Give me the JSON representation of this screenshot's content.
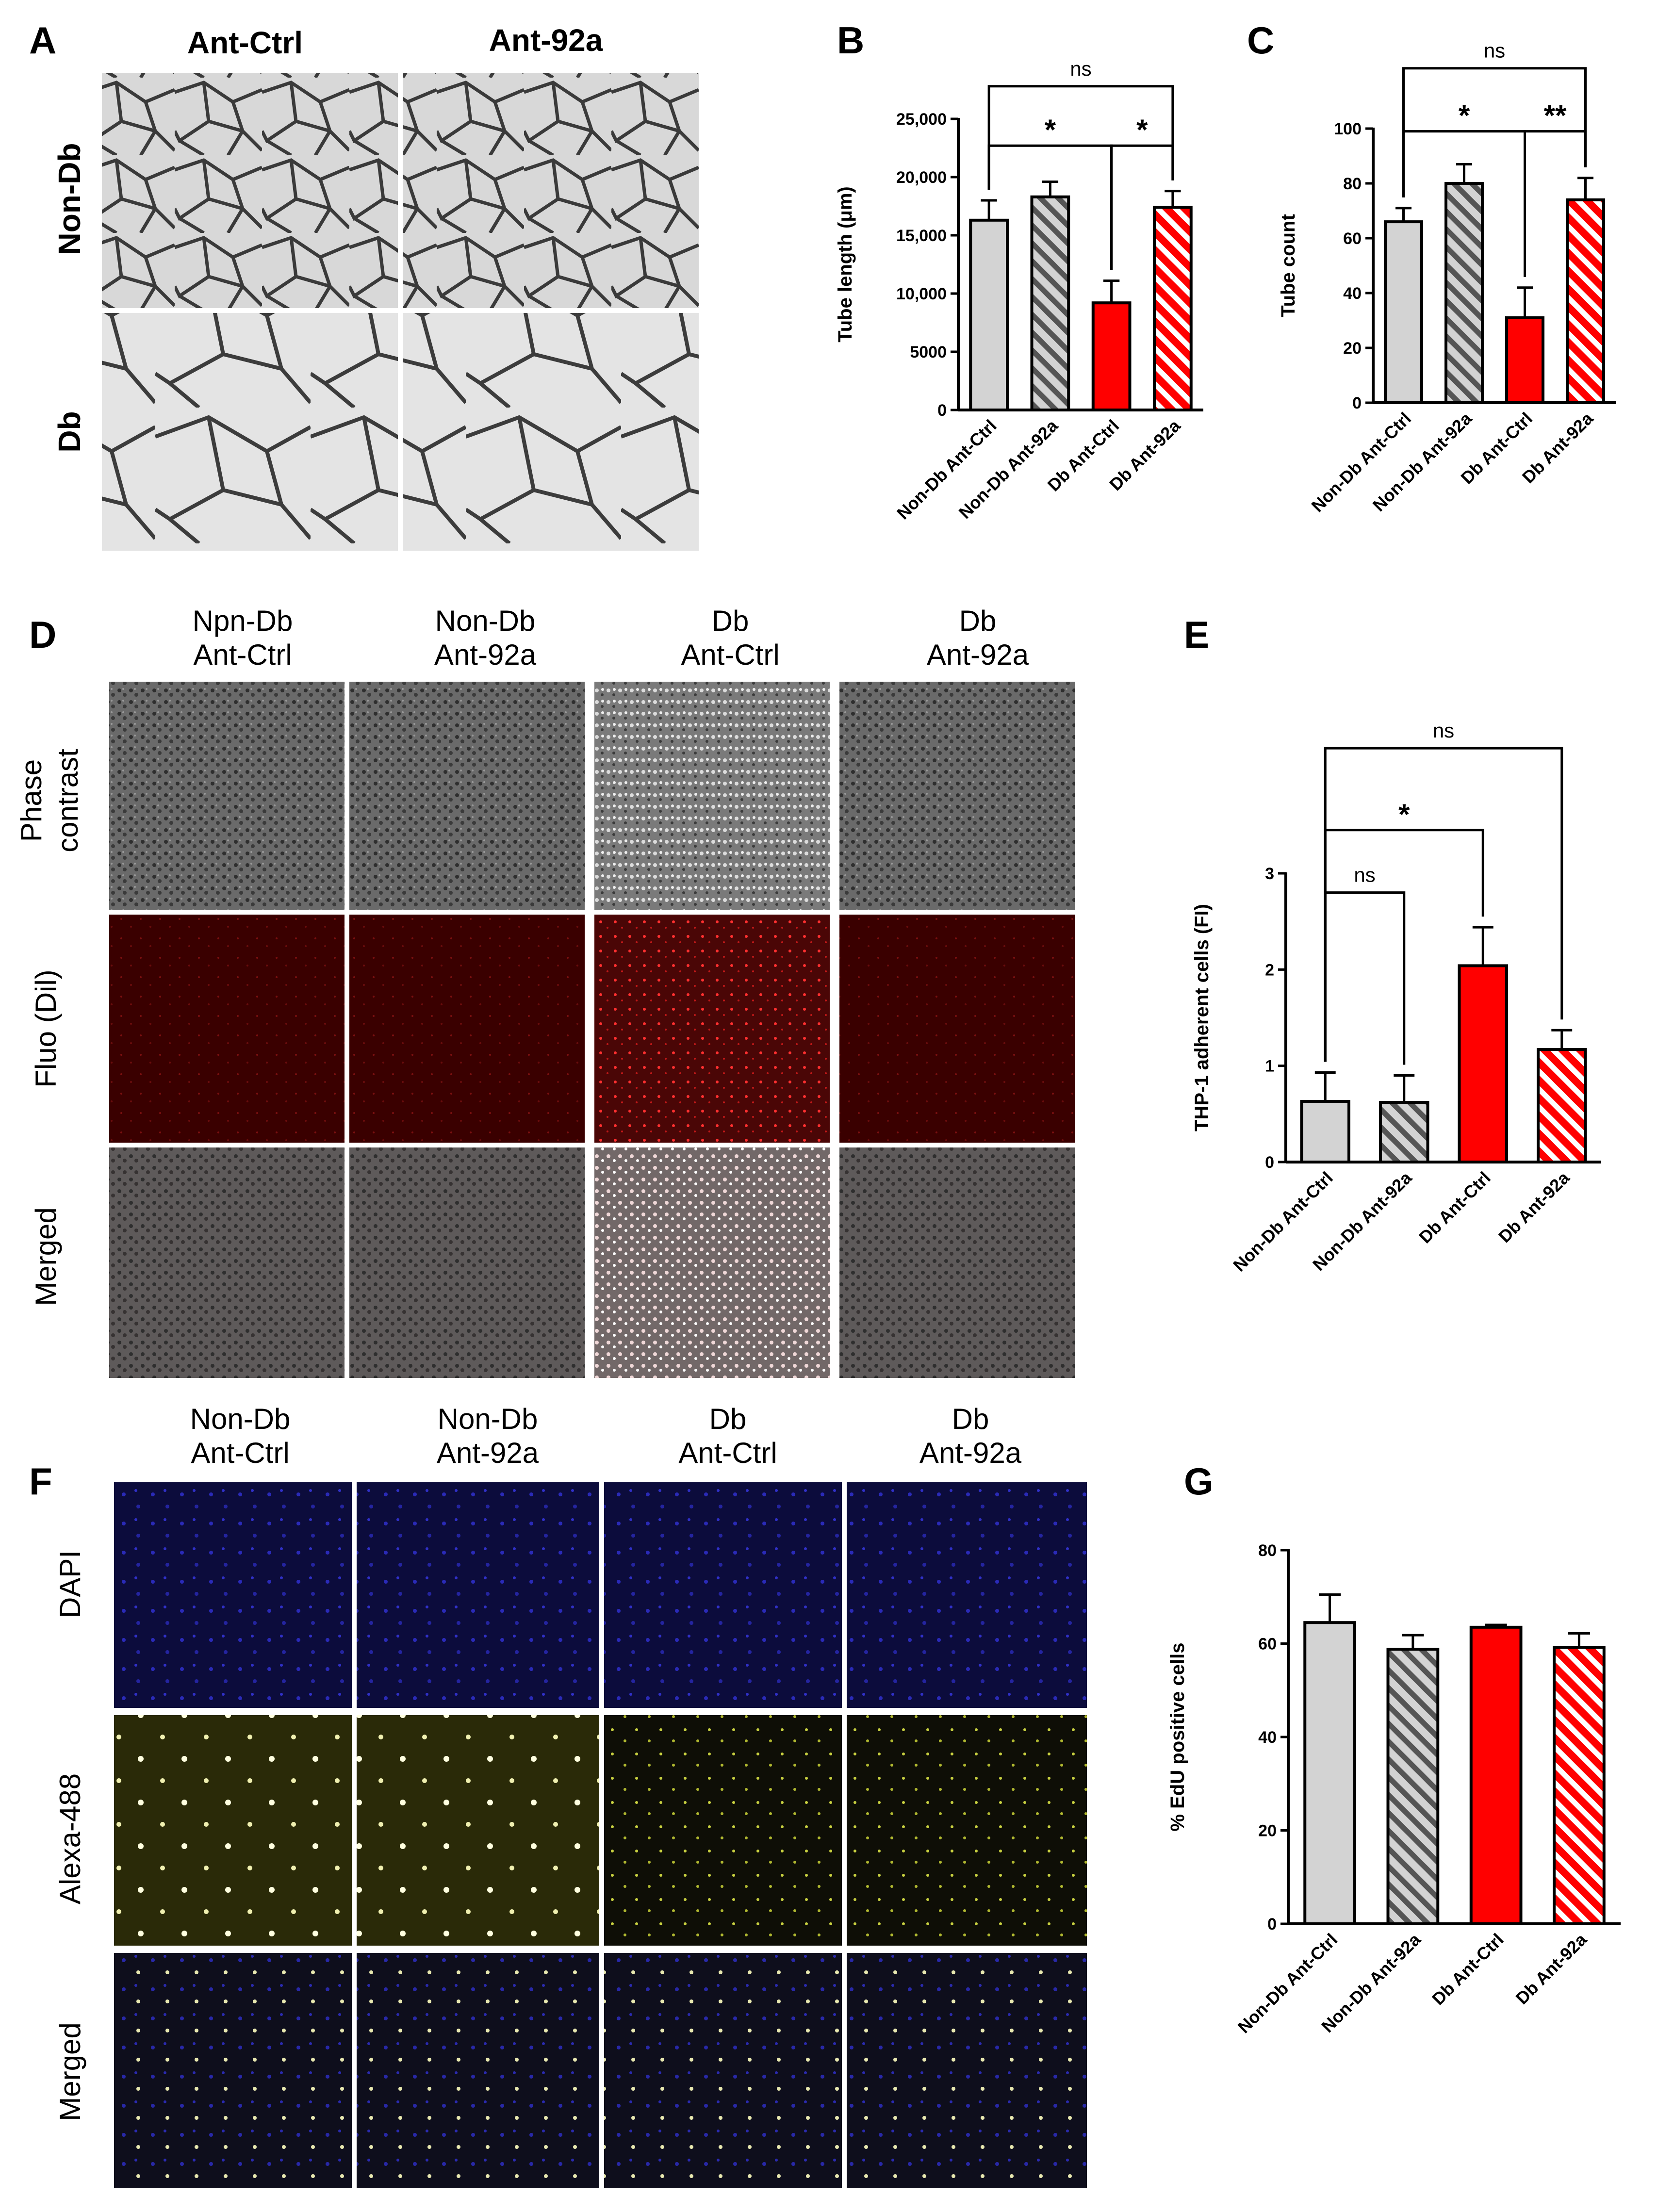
{
  "panels": {
    "A": {
      "letter": "A",
      "col_headers": [
        "Ant-Ctrl",
        "Ant-92a"
      ],
      "row_labels": [
        "Non-Db",
        "Db"
      ]
    },
    "D": {
      "letter": "D",
      "col_headers": [
        [
          "Npn-Db",
          "Ant-Ctrl"
        ],
        [
          "Non-Db",
          "Ant-92a"
        ],
        [
          "Db",
          "Ant-Ctrl"
        ],
        [
          "Db",
          "Ant-92a"
        ]
      ],
      "row_labels": [
        [
          "Phase",
          "contrast"
        ],
        [
          "Fluo (Dil)"
        ],
        [
          "Merged"
        ]
      ]
    },
    "F": {
      "letter": "F",
      "col_headers": [
        [
          "Non-Db",
          "Ant-Ctrl"
        ],
        [
          "Non-Db",
          "Ant-92a"
        ],
        [
          "Db",
          "Ant-Ctrl"
        ],
        [
          "Db",
          "Ant-92a"
        ]
      ],
      "row_labels": [
        "DAPI",
        "Alexa-488",
        "Merged"
      ]
    }
  },
  "colors": {
    "ctrl_fill": "#d3d3d3",
    "ctrl_hatch": "#555555",
    "db_fill": "#ff0000",
    "db_hatch": "#ffffff",
    "phase_bg": "#6a6a6a",
    "fluo_bg": "#3a0000",
    "dapi_bg": "#0c0c3c",
    "alexa_bg": "#2a2a08",
    "merged_f_bg": "#101020"
  },
  "chart_data": [
    {
      "letter": "B",
      "type": "bar",
      "categories": [
        "Non-Db Ant-Ctrl",
        "Non-Db Ant-92a",
        "Db Ant-Ctrl",
        "Db Ant-92a"
      ],
      "values": [
        16300,
        18300,
        9200,
        17400
      ],
      "errors": [
        1700,
        1300,
        1900,
        1400
      ],
      "ylabel": "Tube length (μm)",
      "ylim": [
        0,
        25000
      ],
      "yticks": [
        0,
        5000,
        10000,
        15000,
        20000,
        25000
      ],
      "ytick_labels": [
        "0",
        "5000",
        "10,000",
        "15,000",
        "20,000",
        "25,000"
      ],
      "patterns": [
        "solid-gray",
        "hatched-gray",
        "solid-red",
        "hatched-red"
      ],
      "brackets": [
        {
          "from": 0,
          "to": 3,
          "level": 27800,
          "label": "ns"
        },
        {
          "from": 0,
          "to": 2,
          "level": 22700,
          "label": "*"
        },
        {
          "from": 2,
          "to": 3,
          "level": 22700,
          "label": "*"
        }
      ]
    },
    {
      "letter": "C",
      "type": "bar",
      "categories": [
        "Non-Db Ant-Ctrl",
        "Non-Db Ant-92a",
        "Db Ant-Ctrl",
        "Db Ant-92a"
      ],
      "values": [
        66,
        80,
        31,
        74
      ],
      "errors": [
        5,
        7,
        11,
        8
      ],
      "ylabel": "Tube count",
      "ylim": [
        0,
        100
      ],
      "yticks": [
        0,
        20,
        40,
        60,
        80,
        100
      ],
      "ytick_labels": [
        "0",
        "20",
        "40",
        "60",
        "80",
        "100"
      ],
      "patterns": [
        "solid-gray",
        "hatched-gray",
        "solid-red",
        "hatched-red"
      ],
      "brackets": [
        {
          "from": 0,
          "to": 3,
          "level": 122,
          "label": "ns"
        },
        {
          "from": 0,
          "to": 2,
          "level": 99,
          "label": "*"
        },
        {
          "from": 2,
          "to": 3,
          "level": 99,
          "label": "**"
        }
      ]
    },
    {
      "letter": "E",
      "type": "bar",
      "categories": [
        "Non-Db Ant-Ctrl",
        "Non-Db Ant-92a",
        "Db Ant-Ctrl",
        "Db Ant-92a"
      ],
      "values": [
        0.63,
        0.62,
        2.04,
        1.17
      ],
      "errors": [
        0.3,
        0.28,
        0.4,
        0.2
      ],
      "ylabel": "THP-1 adherent cells (FI)",
      "ylim": [
        0,
        3
      ],
      "yticks": [
        0,
        1,
        2,
        3
      ],
      "ytick_labels": [
        "0",
        "1",
        "2",
        "3"
      ],
      "patterns": [
        "solid-gray",
        "hatched-gray",
        "solid-red",
        "hatched-red"
      ],
      "brackets": [
        {
          "from": 0,
          "to": 3,
          "level": 4.3,
          "label": "ns"
        },
        {
          "from": 0,
          "to": 2,
          "level": 3.45,
          "label": "*"
        },
        {
          "from": 0,
          "to": 1,
          "level": 2.8,
          "label": "ns"
        }
      ]
    },
    {
      "letter": "G",
      "type": "bar",
      "categories": [
        "Non-Db Ant-Ctrl",
        "Non-Db Ant-92a",
        "Db Ant-Ctrl",
        "Db Ant-92a"
      ],
      "values": [
        64.5,
        58.8,
        63.5,
        59.2
      ],
      "errors": [
        6,
        3,
        0.5,
        3
      ],
      "ylabel": "% EdU positive cells",
      "ylim": [
        0,
        80
      ],
      "yticks": [
        0,
        20,
        40,
        60,
        80
      ],
      "ytick_labels": [
        "0",
        "20",
        "40",
        "60",
        "80"
      ],
      "patterns": [
        "solid-gray",
        "hatched-gray",
        "solid-red",
        "hatched-red"
      ],
      "brackets": []
    }
  ]
}
